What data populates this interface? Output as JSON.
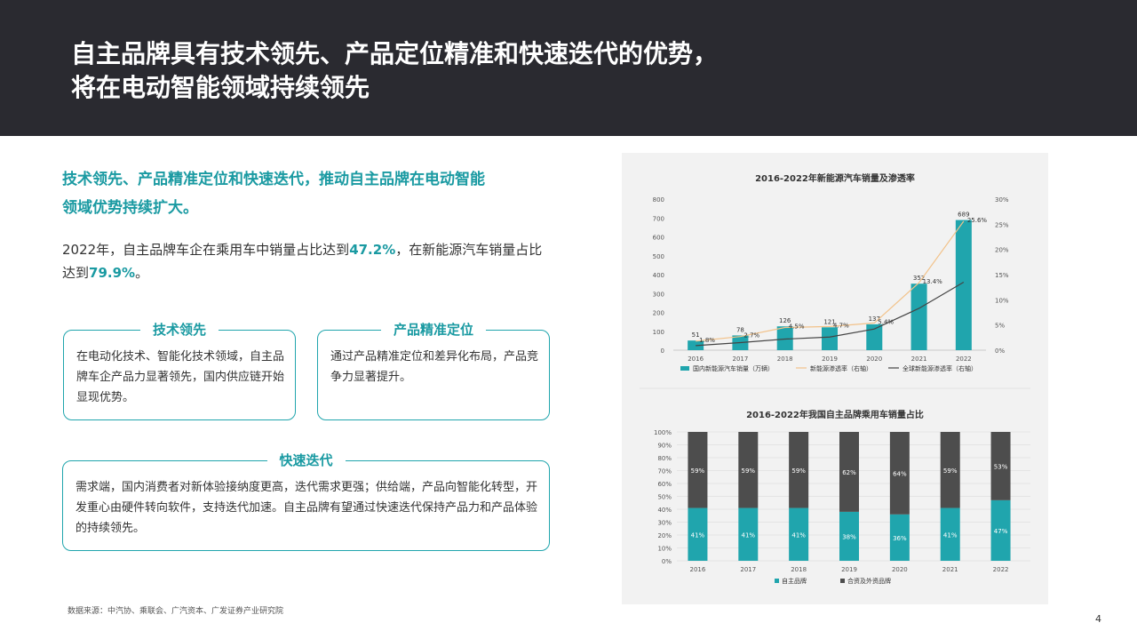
{
  "header": {
    "title_line1": "自主品牌具有技术领先、产品定位精准和快速迭代的优势，",
    "title_line2": "将在电动智能领域持续领先"
  },
  "subheading": {
    "line1": "技术领先、产品精准定位和快速迭代，推动自主品牌在电动智能",
    "line2": "领域优势持续扩大。"
  },
  "summary": {
    "part1": "2022年，自主品牌车企在乘用车中销量占比达到",
    "value1": "47.2%",
    "part2": "，在新能源汽车销量占比达到",
    "value2": "79.9%",
    "part3": "。"
  },
  "boxes": [
    {
      "title": "技术领先",
      "body": "在电动化技术、智能化技术领域，自主品牌车企产品力显著领先，国内供应链开始显现优势。"
    },
    {
      "title": "产品精准定位",
      "body": "通过产品精准定位和差异化布局，产品竞争力显著提升。"
    },
    {
      "title": "快速迭代",
      "body": "需求端，国内消费者对新体验接纳度更高，迭代需求更强；供给端，产品向智能化转型，开发重心由硬件转向软件，支持迭代加速。自主品牌有望通过快速迭代保持产品力和产品体验的持续领先。"
    }
  ],
  "source": "数据来源：中汽协、乘联会、广汽资本、广发证券产业研究院",
  "page_number": "4",
  "colors": {
    "accent": "#1a9aa2",
    "bar_teal": "#20a5ad",
    "bar_dark": "#4d4d4d",
    "line_orange": "#f2c28a",
    "line_dark": "#444444",
    "header_bg": "#2a2a30"
  },
  "chart_data": [
    {
      "type": "bar",
      "title": "2016-2022年新能源汽车销量及渗透率",
      "categories": [
        "2016",
        "2017",
        "2018",
        "2019",
        "2020",
        "2021",
        "2022"
      ],
      "ylim": [
        0,
        800
      ],
      "yticks": [
        "0",
        "100",
        "200",
        "300",
        "400",
        "500",
        "600",
        "700",
        "800"
      ],
      "y2lim": [
        0,
        30
      ],
      "y2ticks": [
        "0%",
        "5%",
        "10%",
        "15%",
        "20%",
        "25%",
        "30%"
      ],
      "series": [
        {
          "name": "国内新能源汽车销量（万辆）",
          "type": "bar",
          "axis": "left",
          "values": [
            51,
            78,
            126,
            121,
            137,
            352,
            689
          ],
          "labels": [
            "51",
            "78",
            "126",
            "121",
            "137",
            "352",
            "689"
          ]
        },
        {
          "name": "新能源渗透率（右轴）",
          "type": "line",
          "axis": "right",
          "values": [
            1.8,
            2.7,
            4.5,
            4.7,
            5.4,
            13.4,
            25.6
          ],
          "labels": [
            "1.8%",
            "2.7%",
            "4.5%",
            "4.7%",
            "5.4%",
            "13.4%",
            "25.6%"
          ]
        },
        {
          "name": "全球新能源渗透率（右轴）",
          "type": "line",
          "axis": "right",
          "values": [
            0.9,
            1.5,
            2.2,
            2.6,
            4.2,
            8.3,
            13.5
          ]
        }
      ],
      "legend": "bottom"
    },
    {
      "type": "bar",
      "stacked": true,
      "title": "2016-2022年我国自主品牌乘用车销量占比",
      "categories": [
        "2016",
        "2017",
        "2018",
        "2019",
        "2020",
        "2021",
        "2022"
      ],
      "ylim": [
        0,
        100
      ],
      "yticks": [
        "0%",
        "10%",
        "20%",
        "30%",
        "40%",
        "50%",
        "60%",
        "70%",
        "80%",
        "90%",
        "100%"
      ],
      "series": [
        {
          "name": "自主品牌",
          "values": [
            41,
            41,
            41,
            38,
            36,
            41,
            47
          ],
          "labels": [
            "41%",
            "41%",
            "41%",
            "38%",
            "36%",
            "41%",
            "47%"
          ]
        },
        {
          "name": "合资及外资品牌",
          "values": [
            59,
            59,
            59,
            62,
            64,
            59,
            53
          ],
          "labels": [
            "59%",
            "59%",
            "59%",
            "62%",
            "64%",
            "59%",
            "53%"
          ]
        }
      ],
      "legend": "bottom"
    }
  ]
}
